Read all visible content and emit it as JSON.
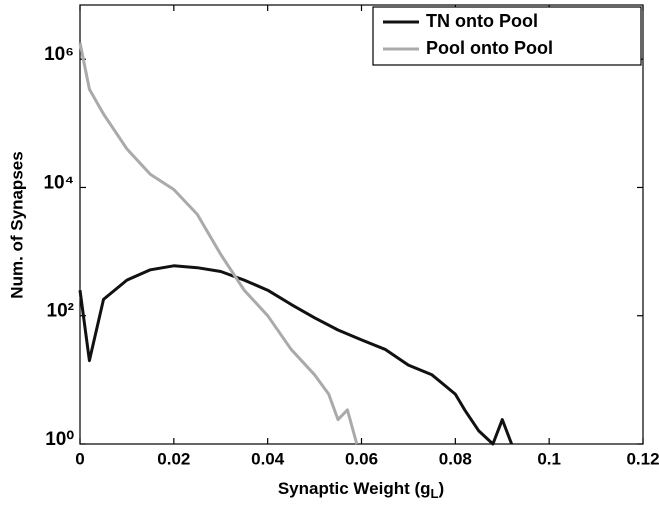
{
  "chart_data": {
    "type": "line",
    "log_y": true,
    "y_label": "Num. of Synapses",
    "x_label": [
      "Synaptic Weight (g",
      "L",
      ")"
    ],
    "xlim": [
      0,
      0.12
    ],
    "xticks": [
      0,
      0.02,
      0.04,
      0.06,
      0.08,
      0.1,
      0.12
    ],
    "ylim": [
      1,
      7000000
    ],
    "yticks": [
      {
        "value": 1,
        "label": "10⁰"
      },
      {
        "value": 100,
        "label": "10²"
      },
      {
        "value": 10000,
        "label": "10⁴"
      },
      {
        "value": 1000000,
        "label": "10⁶"
      }
    ],
    "legend": "upper right",
    "series": [
      {
        "name": "TN onto Pool",
        "color": "#111111",
        "x": [
          0,
          0.002,
          0.005,
          0.01,
          0.015,
          0.02,
          0.025,
          0.03,
          0.035,
          0.04,
          0.045,
          0.05,
          0.055,
          0.06,
          0.065,
          0.07,
          0.075,
          0.08,
          0.082,
          0.085,
          0.088,
          0.09,
          0.092
        ],
        "values": [
          250,
          20,
          180,
          360,
          520,
          600,
          560,
          490,
          360,
          250,
          150,
          93,
          60,
          42,
          30,
          17,
          12,
          6,
          3.4,
          1.6,
          1,
          2.4,
          1
        ]
      },
      {
        "name": "Pool onto Pool",
        "color": "#aaaaaa",
        "x": [
          0,
          0.002,
          0.005,
          0.01,
          0.015,
          0.02,
          0.025,
          0.03,
          0.035,
          0.04,
          0.045,
          0.05,
          0.053,
          0.055,
          0.057,
          0.059
        ],
        "values": [
          1800000,
          340000,
          140000,
          40000,
          16000,
          9300,
          3800,
          900,
          250,
          100,
          30,
          12,
          6,
          2.4,
          3.4,
          1
        ]
      }
    ]
  }
}
